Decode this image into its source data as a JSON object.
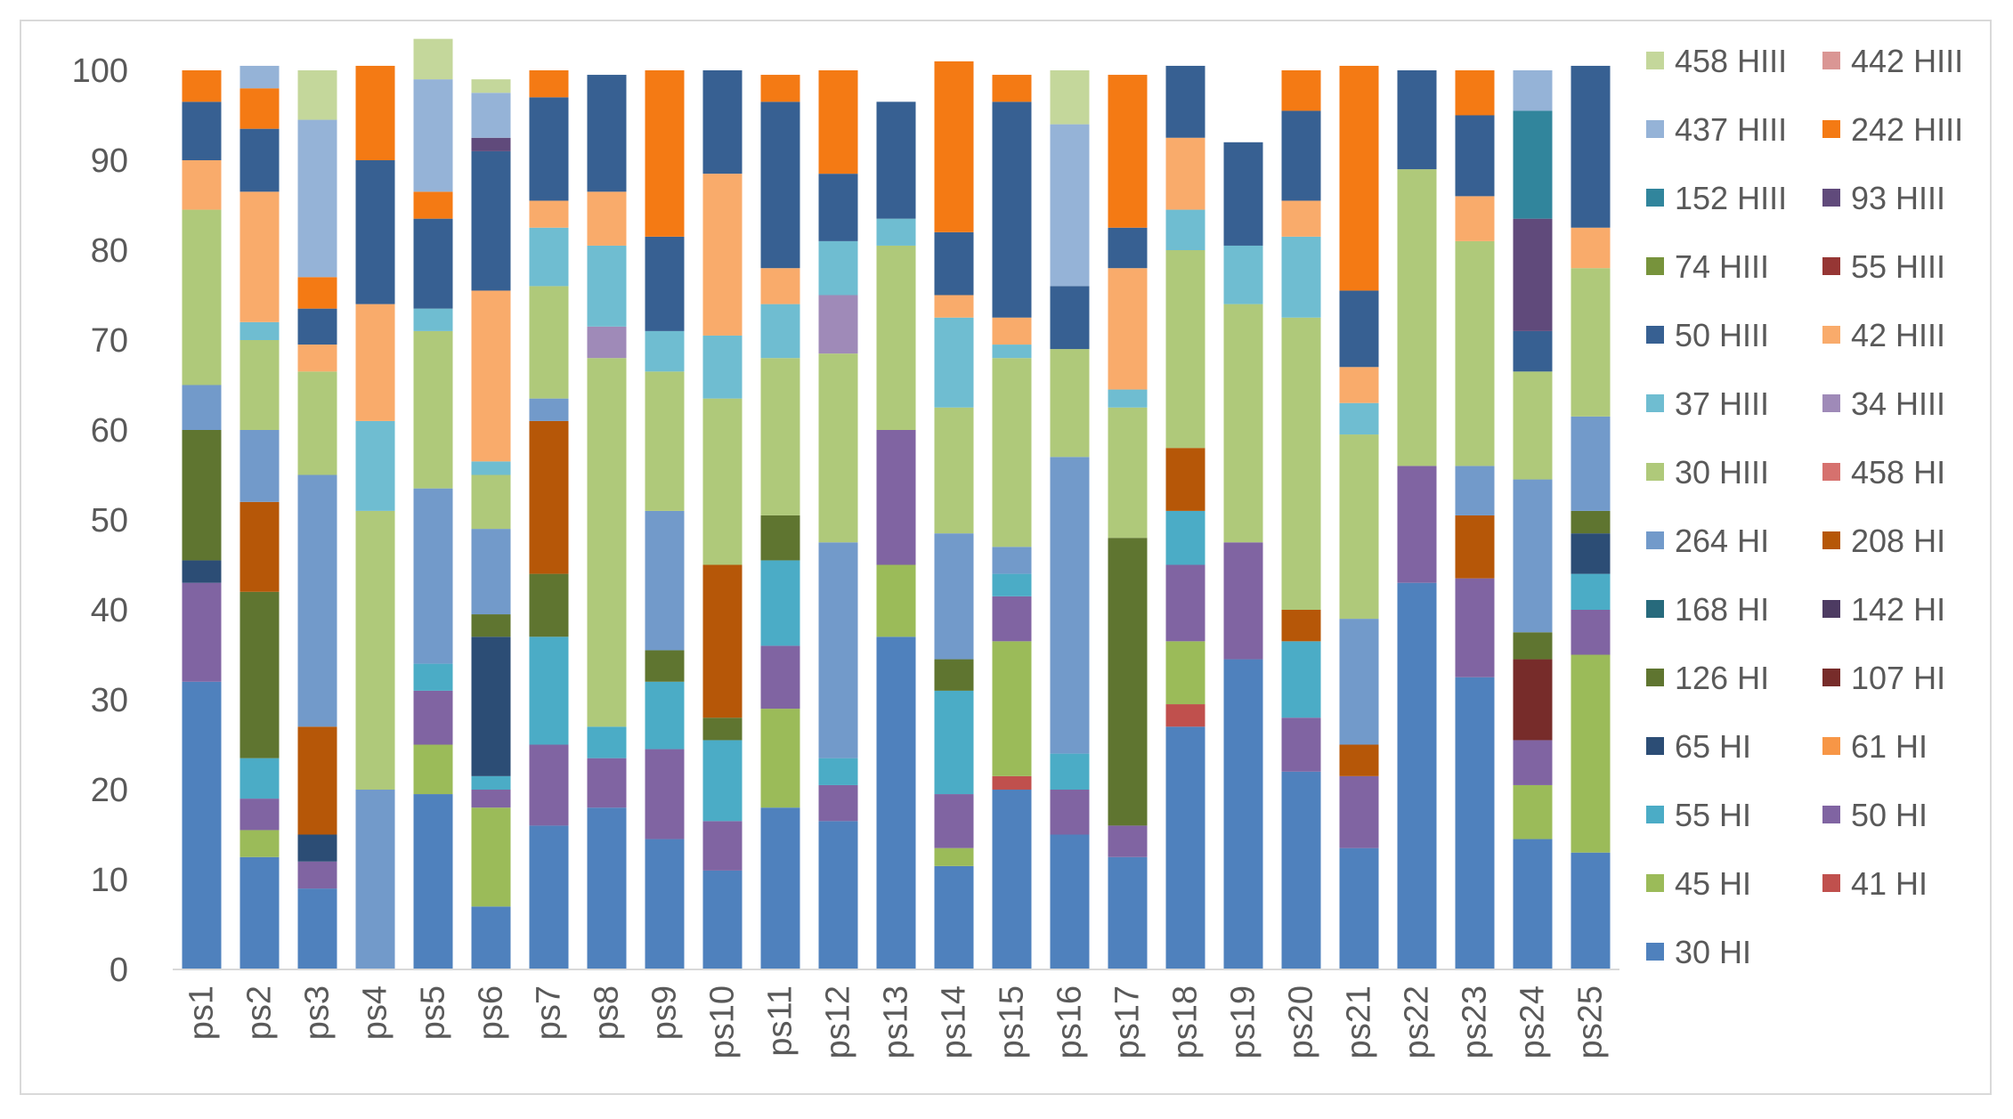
{
  "chart_data": {
    "type": "bar",
    "stacked": true,
    "title": "",
    "xlabel": "",
    "ylabel": "",
    "ylim": [
      0,
      100
    ],
    "yticks": [
      0,
      10,
      20,
      30,
      40,
      50,
      60,
      70,
      80,
      90,
      100
    ],
    "grid": false,
    "legend_position": "right",
    "categories": [
      "ps1",
      "ps2",
      "ps3",
      "ps4",
      "ps5",
      "ps6",
      "ps7",
      "ps8",
      "ps9",
      "ps10",
      "ps11",
      "ps12",
      "ps13",
      "ps14",
      "ps15",
      "ps16",
      "ps17",
      "ps18",
      "ps19",
      "ps20",
      "ps21",
      "ps22",
      "ps23",
      "ps24",
      "ps25"
    ],
    "series": [
      {
        "name": "30 HI",
        "color": "#4f81bd",
        "values": [
          32,
          12.5,
          9,
          0,
          19.5,
          7,
          16,
          18,
          14.5,
          11,
          18,
          16.5,
          37,
          11.5,
          20,
          15,
          12.5,
          27,
          34.5,
          22,
          13.5,
          43,
          32.5,
          14.5,
          13
        ]
      },
      {
        "name": "41 HI",
        "color": "#c0504d",
        "values": [
          0,
          0,
          0,
          0,
          0,
          0,
          0,
          0,
          0,
          0,
          0,
          0,
          0,
          0,
          1.5,
          0,
          0,
          2.5,
          0,
          0,
          0,
          0,
          0,
          0,
          0
        ]
      },
      {
        "name": "45 HI",
        "color": "#9bbb59",
        "values": [
          0,
          3,
          0,
          0,
          5.5,
          11,
          0,
          0,
          0,
          0,
          11,
          0,
          8,
          2,
          15,
          0,
          0,
          7,
          0,
          0,
          0,
          0,
          0,
          6,
          22
        ]
      },
      {
        "name": "50 HI",
        "color": "#8064a2",
        "values": [
          11,
          3.5,
          3,
          0,
          6,
          2,
          9,
          5.5,
          10,
          5.5,
          7,
          4,
          15,
          6,
          5,
          5,
          3.5,
          8.5,
          13,
          6,
          8,
          13,
          11,
          5,
          5
        ]
      },
      {
        "name": "55 HI",
        "color": "#4bacc6",
        "values": [
          0,
          4.5,
          0,
          0,
          3,
          1.5,
          12,
          3.5,
          7.5,
          9,
          9.5,
          3,
          0,
          11.5,
          2.5,
          4,
          0,
          6,
          0,
          8.5,
          0,
          0,
          0,
          0,
          4
        ]
      },
      {
        "name": "61 HI",
        "color": "#f79646",
        "values": [
          0,
          0,
          0,
          0,
          0,
          0,
          0,
          0,
          0,
          0,
          0,
          0,
          0,
          0,
          0,
          0,
          0,
          0,
          0,
          0,
          0,
          0,
          0,
          0,
          0
        ]
      },
      {
        "name": "65 HI",
        "color": "#2c4d75",
        "values": [
          2.5,
          0,
          3,
          0,
          0,
          15.5,
          0,
          0,
          0,
          0,
          0,
          0,
          0,
          0,
          0,
          0,
          0,
          0,
          0,
          0,
          0,
          0,
          0,
          0,
          4.5
        ]
      },
      {
        "name": "107 HI",
        "color": "#772c2a",
        "values": [
          0,
          0,
          0,
          0,
          0,
          0,
          0,
          0,
          0,
          0,
          0,
          0,
          0,
          0,
          0,
          0,
          0,
          0,
          0,
          0,
          0,
          0,
          0,
          9,
          0
        ]
      },
      {
        "name": "126 HI",
        "color": "#5f7530",
        "values": [
          14.5,
          18.5,
          0,
          0,
          0,
          2.5,
          7,
          0,
          3.5,
          2.5,
          5,
          0,
          0,
          3.5,
          0,
          0,
          32,
          0,
          0,
          0,
          0,
          0,
          0,
          3,
          2.5
        ]
      },
      {
        "name": "142 HI",
        "color": "#4d3b62",
        "values": [
          0,
          0,
          0,
          0,
          0,
          0,
          0,
          0,
          0,
          0,
          0,
          0,
          0,
          0,
          0,
          0,
          0,
          0,
          0,
          0,
          0,
          0,
          0,
          0,
          0
        ]
      },
      {
        "name": "168 HI",
        "color": "#276a7c",
        "values": [
          0,
          0,
          0,
          0,
          0,
          0,
          0,
          0,
          0,
          0,
          0,
          0,
          0,
          0,
          0,
          0,
          0,
          0,
          0,
          0,
          0,
          0,
          0,
          0,
          0
        ]
      },
      {
        "name": "208 HI",
        "color": "#b65708",
        "values": [
          0,
          10,
          12,
          0,
          0,
          0,
          17,
          0,
          0,
          17,
          0,
          0,
          0,
          0,
          0,
          0,
          0,
          7,
          0,
          3.5,
          3.5,
          0,
          7,
          0,
          0
        ]
      },
      {
        "name": "264 HI",
        "color": "#729aca",
        "values": [
          5,
          8,
          28,
          20,
          19.5,
          9.5,
          2.5,
          0,
          15.5,
          0,
          0,
          24,
          0,
          14,
          3,
          33,
          0,
          0,
          0,
          0,
          14,
          0,
          5.5,
          17,
          10.5
        ]
      },
      {
        "name": "458 HI",
        "color": "#d6716e",
        "values": [
          0,
          0,
          0,
          0,
          0,
          0,
          0,
          0,
          0,
          0,
          0,
          0,
          0,
          0,
          0,
          0,
          0,
          0,
          0,
          0,
          0,
          0,
          0,
          0,
          0
        ]
      },
      {
        "name": "30 HIII",
        "color": "#afc97a",
        "values": [
          19.5,
          10,
          11.5,
          31,
          17.5,
          6,
          12.5,
          41,
          15.5,
          18.5,
          17.5,
          21,
          20.5,
          14,
          21,
          12,
          14.5,
          22,
          26.5,
          32.5,
          20.5,
          33,
          25,
          12,
          16.5
        ]
      },
      {
        "name": "34 HIII",
        "color": "#9f8ab8",
        "values": [
          0,
          0,
          0,
          0,
          0,
          0,
          0,
          3.5,
          0,
          0,
          0,
          6.5,
          0,
          0,
          0,
          0,
          0,
          0,
          0,
          0,
          0,
          0,
          0,
          0,
          0
        ]
      },
      {
        "name": "37 HIII",
        "color": "#6fbdd1",
        "values": [
          0,
          2,
          0,
          10,
          2.5,
          1.5,
          6.5,
          9,
          4.5,
          7,
          6,
          6,
          3,
          10,
          1.5,
          0,
          2,
          4.5,
          6.5,
          9,
          3.5,
          0,
          0,
          0,
          0
        ]
      },
      {
        "name": "42 HIII",
        "color": "#f9ab6b",
        "values": [
          5.5,
          14.5,
          3,
          13,
          0,
          19,
          3,
          6,
          0,
          18,
          4,
          0,
          0,
          2.5,
          3,
          0,
          13.5,
          8,
          0,
          4,
          4,
          0,
          5,
          0,
          4.5
        ]
      },
      {
        "name": "50 HIII",
        "color": "#376092",
        "values": [
          6.5,
          7,
          4,
          16,
          10,
          15.5,
          11.5,
          13,
          10.5,
          11.5,
          18.5,
          7.5,
          13,
          7,
          24,
          7,
          4.5,
          8,
          11.5,
          10,
          8.5,
          11,
          9,
          4.5,
          18
        ]
      },
      {
        "name": "55 HIII",
        "color": "#963634",
        "values": [
          0,
          0,
          0,
          0,
          0,
          0,
          0,
          0,
          0,
          0,
          0,
          0,
          0,
          0,
          0,
          0,
          0,
          0,
          0,
          0,
          0,
          0,
          0,
          0,
          0
        ]
      },
      {
        "name": "74 HIII",
        "color": "#77933c",
        "values": [
          0,
          0,
          0,
          0,
          0,
          0,
          0,
          0,
          0,
          0,
          0,
          0,
          0,
          0,
          0,
          0,
          0,
          0,
          0,
          0,
          0,
          0,
          0,
          0,
          0
        ]
      },
      {
        "name": "93 HIII",
        "color": "#604a7b",
        "values": [
          0,
          0,
          0,
          0,
          0,
          1.5,
          0,
          0,
          0,
          0,
          0,
          0,
          0,
          0,
          0,
          0,
          0,
          0,
          0,
          0,
          0,
          0,
          0,
          12.5,
          0
        ]
      },
      {
        "name": "152 HIII",
        "color": "#31859c",
        "values": [
          0,
          0,
          0,
          0,
          0,
          0,
          0,
          0,
          0,
          0,
          0,
          0,
          0,
          0,
          0,
          0,
          0,
          0,
          0,
          0,
          0,
          0,
          0,
          12,
          0
        ]
      },
      {
        "name": "242 HIII",
        "color": "#f47a14",
        "values": [
          3.5,
          4.5,
          3.5,
          10.5,
          3,
          0,
          3,
          0,
          18.5,
          0,
          3,
          11.5,
          0,
          19,
          3,
          0,
          17,
          0,
          0,
          4.5,
          25,
          0,
          5,
          0,
          0
        ]
      },
      {
        "name": "437 HIII",
        "color": "#95b3d7",
        "values": [
          0,
          2.5,
          17.5,
          0,
          12.5,
          5,
          0,
          0,
          0,
          0,
          0,
          0,
          0,
          0,
          0,
          18,
          0,
          0,
          0,
          0,
          0,
          0,
          0,
          4.5,
          0
        ]
      },
      {
        "name": "442 HIII",
        "color": "#da9694",
        "values": [
          0,
          0,
          0,
          0,
          0,
          0,
          0,
          0,
          0,
          0,
          0,
          0,
          0,
          0,
          0,
          0,
          0,
          0,
          0,
          0,
          0,
          0,
          0,
          0,
          0
        ]
      },
      {
        "name": "458 HIII",
        "color": "#c4d79b",
        "values": [
          0,
          0,
          5.5,
          0,
          4.5,
          1.5,
          0,
          0,
          0,
          0,
          0,
          0,
          0,
          0,
          0,
          6,
          0,
          0,
          0,
          0,
          0,
          0,
          0,
          0,
          0
        ]
      }
    ],
    "legend_order": [
      "458 HIII",
      "442 HIII",
      "437 HIII",
      "242 HIII",
      "152 HIII",
      "93 HIII",
      "74 HIII",
      "55 HIII",
      "50 HIII",
      "42 HIII",
      "37 HIII",
      "34 HIII",
      "30 HIII",
      "458 HI",
      "264 HI",
      "208 HI",
      "168 HI",
      "142 HI",
      "126 HI",
      "107 HI",
      "65 HI",
      "61 HI",
      "55 HI",
      "50 HI",
      "45 HI",
      "41 HI",
      "30 HI"
    ]
  }
}
